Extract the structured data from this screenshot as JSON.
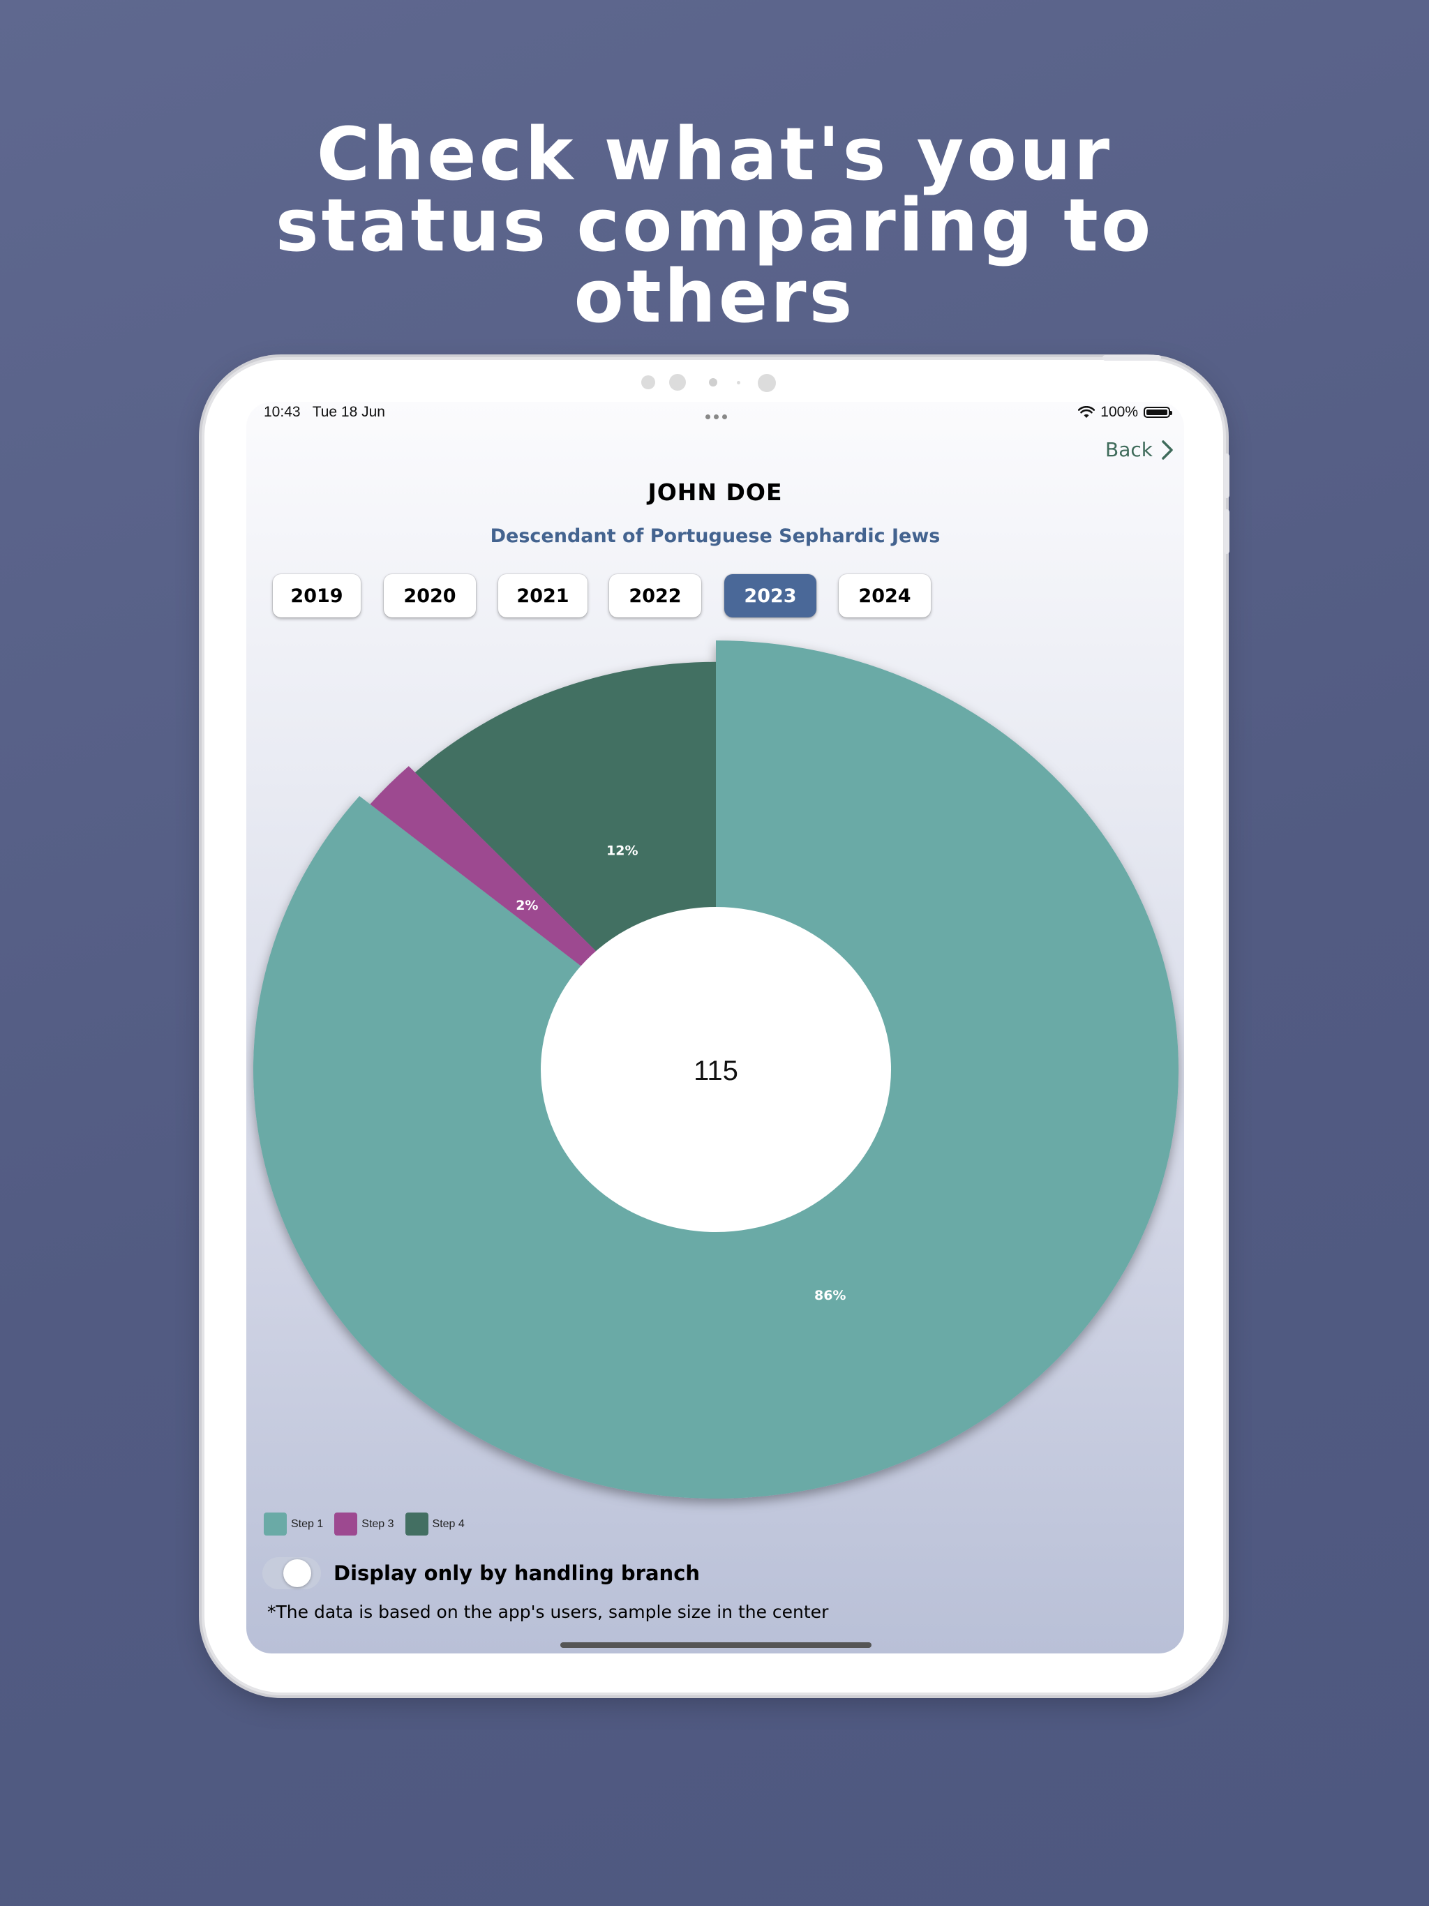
{
  "headline": {
    "line1": "Check what's your",
    "line2": "status comparing to",
    "line3": "others"
  },
  "status_bar": {
    "time": "10:43",
    "date": "Tue 18 Jun",
    "battery": "100%"
  },
  "header": {
    "back_label": "Back",
    "user_name": "JOHN DOE",
    "user_description": "Descendant of Portuguese Sephardic Jews"
  },
  "years": [
    {
      "label": "2019",
      "selected": false
    },
    {
      "label": "2020",
      "selected": false
    },
    {
      "label": "2021",
      "selected": false
    },
    {
      "label": "2022",
      "selected": false
    },
    {
      "label": "2023",
      "selected": true
    },
    {
      "label": "2024",
      "selected": false
    }
  ],
  "chart_data": {
    "type": "pie",
    "center_value": "115",
    "series": [
      {
        "name": "Step 1",
        "value": 86,
        "label": "86%",
        "color": "#6aaaa6"
      },
      {
        "name": "Step 3",
        "value": 2,
        "label": "2%",
        "color": "#9d4990"
      },
      {
        "name": "Step 4",
        "value": 12,
        "label": "12%",
        "color": "#436f62"
      }
    ],
    "legend_position": "bottom-left"
  },
  "controls": {
    "toggle_label": "Display only by handling branch",
    "toggle_on": false,
    "footnote": "*The data is based on the app's users, sample size in the center"
  },
  "colors": {
    "accent": "#4a6898",
    "back_link": "#3f6b5b",
    "description": "#43638f"
  }
}
